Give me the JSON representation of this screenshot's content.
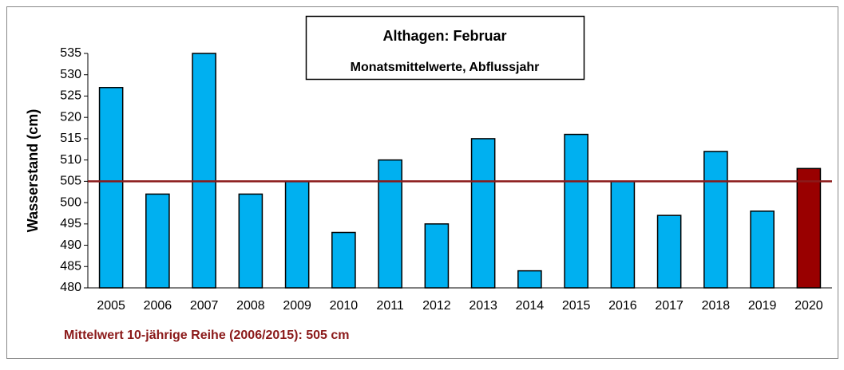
{
  "chart_data": {
    "type": "bar",
    "title": "Althagen: Februar",
    "subtitle": "Monatsmittelwerte, Abflussjahr",
    "y_label": "Wasserstand (cm)",
    "annotation": "Mittelwert 10-jährige Reihe (2006/2015): 505 cm",
    "categories": [
      "2005",
      "2006",
      "2007",
      "2008",
      "2009",
      "2010",
      "2011",
      "2012",
      "2013",
      "2014",
      "2015",
      "2016",
      "2017",
      "2018",
      "2019",
      "2020"
    ],
    "values": [
      527,
      502,
      535,
      502,
      505,
      493,
      510,
      495,
      515,
      484,
      516,
      505,
      497,
      512,
      498,
      508
    ],
    "colors": [
      "#00b0f0",
      "#00b0f0",
      "#00b0f0",
      "#00b0f0",
      "#00b0f0",
      "#00b0f0",
      "#00b0f0",
      "#00b0f0",
      "#00b0f0",
      "#00b0f0",
      "#00b0f0",
      "#00b0f0",
      "#00b0f0",
      "#00b0f0",
      "#00b0f0",
      "#990000"
    ],
    "reference_line": {
      "value": 505,
      "color": "#8b1a1a"
    },
    "ylim": [
      480,
      535
    ],
    "yticks": [
      480,
      485,
      490,
      495,
      500,
      505,
      510,
      515,
      520,
      525,
      530,
      535
    ],
    "grid": false
  }
}
